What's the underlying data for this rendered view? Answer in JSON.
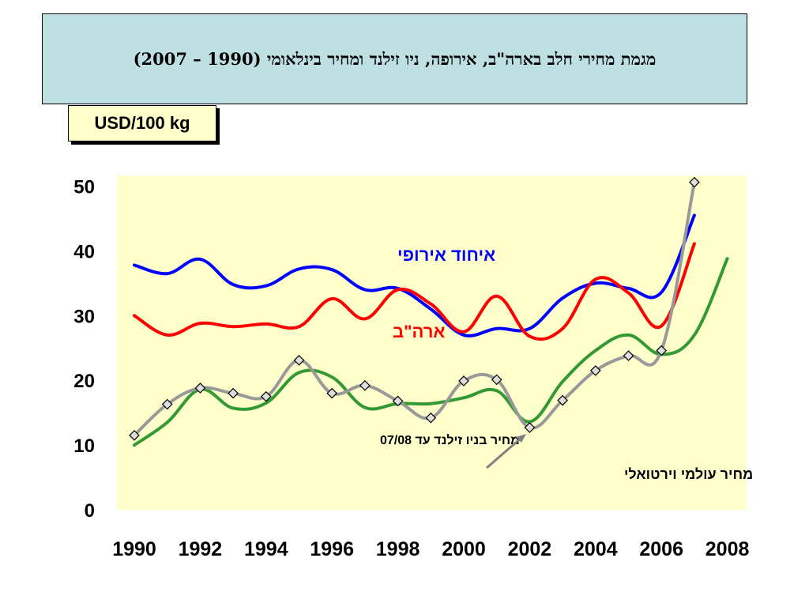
{
  "title": "מגמת מחירי חלב בארה\"ב, אירופה, ניו זילנד ומחיר בינלאומי (1990 – 2007)",
  "unit_label": "USD/100 kg",
  "colors": {
    "plot_bg": "#ffffcc",
    "eu": "#0000ff",
    "usa": "#ff0000",
    "nz": "#339933",
    "world": "#999999"
  },
  "chart_data": {
    "type": "line",
    "ylim": [
      0,
      50
    ],
    "xlim": [
      1990,
      2008
    ],
    "yticks": [
      "0",
      "10",
      "20",
      "30",
      "40",
      "50"
    ],
    "xticks": [
      "1990",
      "1992",
      "1994",
      "1996",
      "1998",
      "2000",
      "2002",
      "2004",
      "2006",
      "2008"
    ],
    "series": [
      {
        "name": "איחוד אירופי",
        "key": "eu",
        "x": [
          1990,
          1991,
          1992,
          1993,
          1994,
          1995,
          1996,
          1997,
          1998,
          1999,
          2000,
          2001,
          2002,
          2003,
          2004,
          2005,
          2006,
          2007
        ],
        "values": [
          37.8,
          36.5,
          38.7,
          34.8,
          34.6,
          37.2,
          37.1,
          34.0,
          34.2,
          31.0,
          27.0,
          28.0,
          28.0,
          32.7,
          35.0,
          34.2,
          33.6,
          45.5
        ]
      },
      {
        "name": "ארה\"ב",
        "key": "usa",
        "x": [
          1990,
          1991,
          1992,
          1993,
          1994,
          1995,
          1996,
          1997,
          1998,
          1999,
          2000,
          2001,
          2002,
          2003,
          2004,
          2005,
          2006,
          2007
        ],
        "values": [
          30.0,
          27.0,
          28.8,
          28.3,
          28.7,
          28.3,
          32.6,
          29.5,
          34.0,
          31.8,
          27.5,
          33.0,
          26.8,
          28.0,
          35.6,
          33.5,
          28.4,
          41.1
        ]
      },
      {
        "name": "מחיר בניו זילנד עד 07/08",
        "key": "nz",
        "x": [
          1990,
          1991,
          1992,
          1993,
          1994,
          1995,
          1996,
          1997,
          1998,
          1999,
          2000,
          2001,
          2002,
          2003,
          2004,
          2005,
          2006,
          2007,
          2008
        ],
        "values": [
          10.0,
          13.5,
          18.6,
          15.7,
          16.5,
          21.2,
          20.5,
          15.8,
          16.4,
          16.4,
          17.3,
          18.4,
          13.6,
          19.8,
          24.6,
          27.0,
          24.0,
          27.0,
          38.8
        ]
      },
      {
        "name": "מחיר עולמי וירטואלי",
        "key": "world",
        "x": [
          1990,
          1991,
          1992,
          1993,
          1994,
          1995,
          1996,
          1997,
          1998,
          1999,
          2000,
          2001,
          2002,
          2003,
          2004,
          2005,
          2006,
          2007
        ],
        "values": [
          11.5,
          16.3,
          18.8,
          18.0,
          17.5,
          23.1,
          18.0,
          19.2,
          16.8,
          14.2,
          19.9,
          20.1,
          12.7,
          16.9,
          21.5,
          23.8,
          24.6,
          50.6
        ]
      }
    ],
    "annotations": [
      {
        "text": "איחוד אירופי",
        "color": "#0000ff",
        "size": 22
      },
      {
        "text": "ארה\"ב",
        "color": "#ff0000",
        "size": 22
      },
      {
        "text": "מחיר בניו זילנד עד 07/08",
        "color": "#000000",
        "size": 16
      },
      {
        "text": "מחיר עולמי וירטואלי",
        "color": "#000000",
        "size": 18
      }
    ]
  }
}
